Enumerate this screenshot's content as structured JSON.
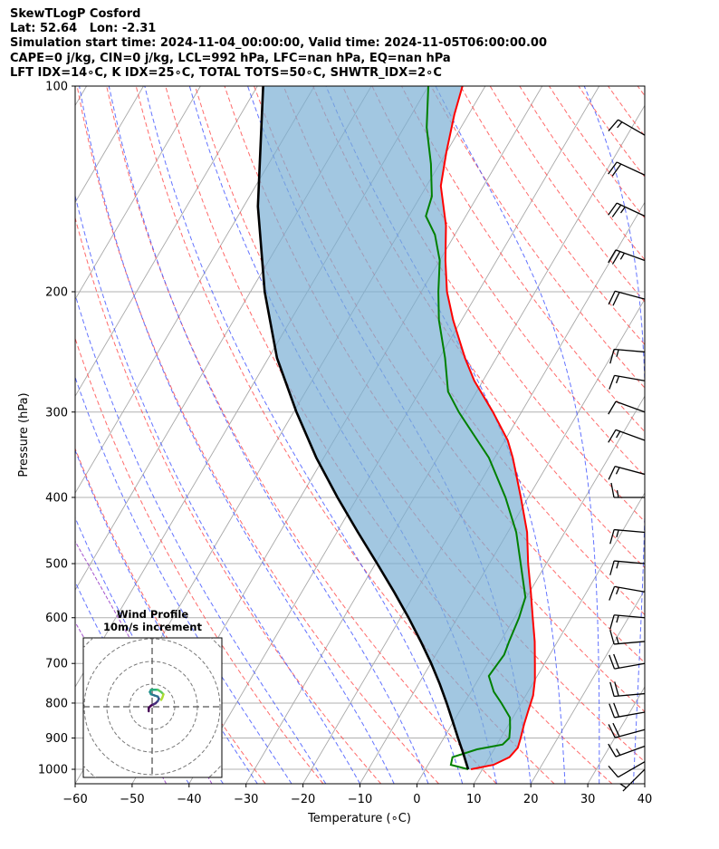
{
  "header": {
    "line1": "SkewTLogP Cosford",
    "line2": "Lat: 52.64   Lon: -2.31",
    "line3": "Simulation start time: 2024-11-04_00:00:00, Valid time: 2024-11-05T06:00:00.00",
    "line4": "CAPE=0 j/kg, CIN=0 j/kg, LCL=992 hPa, LFC=nan hPa, EQ=nan hPa",
    "line5": "LFT IDX=14∘C, K IDX=25∘C, TOTAL TOTS=50∘C, SHWTR_IDX=2∘C"
  },
  "chart_data": {
    "type": "line",
    "xlabel": "Temperature (∘C)",
    "ylabel": "Pressure (hPa)",
    "xlim": [
      -60,
      40
    ],
    "ylim": [
      1050,
      100
    ],
    "xticks": [
      -60,
      -50,
      -40,
      -30,
      -20,
      -10,
      0,
      10,
      20,
      30,
      40
    ],
    "yticks": [
      100,
      200,
      300,
      400,
      500,
      600,
      700,
      800,
      900,
      1000
    ],
    "temperature": {
      "color": "#ff0000",
      "points": [
        [
          1000,
          8
        ],
        [
          985,
          11.5
        ],
        [
          960,
          13.5
        ],
        [
          930,
          14
        ],
        [
          900,
          13.5
        ],
        [
          860,
          12.7
        ],
        [
          820,
          12
        ],
        [
          780,
          11.3
        ],
        [
          740,
          10
        ],
        [
          700,
          8.3
        ],
        [
          650,
          6
        ],
        [
          600,
          3.2
        ],
        [
          550,
          0.2
        ],
        [
          500,
          -3.2
        ],
        [
          450,
          -6.6
        ],
        [
          400,
          -11.3
        ],
        [
          350,
          -16.8
        ],
        [
          330,
          -19.5
        ],
        [
          300,
          -25
        ],
        [
          270,
          -31.5
        ],
        [
          250,
          -35.5
        ],
        [
          220,
          -41.5
        ],
        [
          200,
          -45.5
        ],
        [
          180,
          -49
        ],
        [
          160,
          -52.5
        ],
        [
          140,
          -57.5
        ],
        [
          125,
          -60
        ],
        [
          110,
          -62.5
        ],
        [
          100,
          -64
        ]
      ]
    },
    "dewpoint": {
      "color": "#008000",
      "points": [
        [
          1000,
          7.5
        ],
        [
          985,
          4
        ],
        [
          960,
          3.5
        ],
        [
          935,
          7
        ],
        [
          920,
          11
        ],
        [
          900,
          11.5
        ],
        [
          870,
          10.6
        ],
        [
          840,
          9.5
        ],
        [
          800,
          6.5
        ],
        [
          770,
          4
        ],
        [
          730,
          1.5
        ],
        [
          680,
          2
        ],
        [
          650,
          1.5
        ],
        [
          600,
          0.8
        ],
        [
          560,
          -0.2
        ],
        [
          500,
          -4.5
        ],
        [
          450,
          -8.5
        ],
        [
          400,
          -14
        ],
        [
          350,
          -21
        ],
        [
          300,
          -31
        ],
        [
          280,
          -35
        ],
        [
          250,
          -39
        ],
        [
          220,
          -44
        ],
        [
          200,
          -47
        ],
        [
          180,
          -50
        ],
        [
          165,
          -53.5
        ],
        [
          155,
          -57
        ],
        [
          145,
          -58
        ],
        [
          130,
          -61.5
        ],
        [
          115,
          -66
        ],
        [
          100,
          -70
        ]
      ]
    },
    "parcel": {
      "color": "#000000",
      "points": [
        [
          1000,
          7.5
        ],
        [
          950,
          5.1
        ],
        [
          900,
          2.5
        ],
        [
          850,
          -0.2
        ],
        [
          800,
          -3.1
        ],
        [
          750,
          -6.3
        ],
        [
          700,
          -9.9
        ],
        [
          650,
          -14
        ],
        [
          600,
          -18.6
        ],
        [
          550,
          -23.8
        ],
        [
          500,
          -29.7
        ],
        [
          450,
          -36.3
        ],
        [
          400,
          -43.5
        ],
        [
          350,
          -51.3
        ],
        [
          300,
          -59.5
        ],
        [
          250,
          -68.5
        ],
        [
          200,
          -77.5
        ],
        [
          150,
          -87.5
        ],
        [
          100,
          -99
        ]
      ]
    },
    "cape_fill_color": "#7bafd4",
    "winds": [
      {
        "p": 1000,
        "dir": 225,
        "spd": 5
      },
      {
        "p": 975,
        "dir": 240,
        "spd": 10
      },
      {
        "p": 925,
        "dir": 250,
        "spd": 15
      },
      {
        "p": 875,
        "dir": 255,
        "spd": 20
      },
      {
        "p": 825,
        "dir": 260,
        "spd": 20
      },
      {
        "p": 775,
        "dir": 265,
        "spd": 20
      },
      {
        "p": 700,
        "dir": 260,
        "spd": 20
      },
      {
        "p": 650,
        "dir": 265,
        "spd": 15
      },
      {
        "p": 600,
        "dir": 275,
        "spd": 15
      },
      {
        "p": 550,
        "dir": 280,
        "spd": 15
      },
      {
        "p": 500,
        "dir": 275,
        "spd": 15
      },
      {
        "p": 450,
        "dir": 275,
        "spd": 15
      },
      {
        "p": 400,
        "dir": 270,
        "spd": 15
      },
      {
        "p": 370,
        "dir": 285,
        "spd": 15
      },
      {
        "p": 330,
        "dir": 290,
        "spd": 15
      },
      {
        "p": 300,
        "dir": 290,
        "spd": 10
      },
      {
        "p": 270,
        "dir": 280,
        "spd": 15
      },
      {
        "p": 245,
        "dir": 275,
        "spd": 15
      },
      {
        "p": 205,
        "dir": 285,
        "spd": 20
      },
      {
        "p": 180,
        "dir": 290,
        "spd": 25
      },
      {
        "p": 155,
        "dir": 295,
        "spd": 25
      },
      {
        "p": 135,
        "dir": 295,
        "spd": 20
      },
      {
        "p": 118,
        "dir": 300,
        "spd": 15
      }
    ],
    "hodograph": {
      "title": "Wind Profile",
      "subtitle": "10m/s increment",
      "ring_step": 10,
      "points": [
        [
          -1.5,
          -2
        ],
        [
          -1.5,
          -0.5
        ],
        [
          -0.5,
          0.5
        ],
        [
          0.5,
          1
        ],
        [
          1.5,
          1.5
        ],
        [
          2.5,
          2.5
        ],
        [
          3,
          3.5
        ],
        [
          2.5,
          4.5
        ],
        [
          1,
          5
        ],
        [
          -0.5,
          5.5
        ],
        [
          -1,
          6.5
        ],
        [
          -0.5,
          7.5
        ],
        [
          1,
          7.5
        ],
        [
          2.5,
          7.5
        ],
        [
          4,
          6.5
        ],
        [
          5,
          5.5
        ],
        [
          4.5,
          4
        ],
        [
          4,
          3
        ]
      ]
    }
  }
}
